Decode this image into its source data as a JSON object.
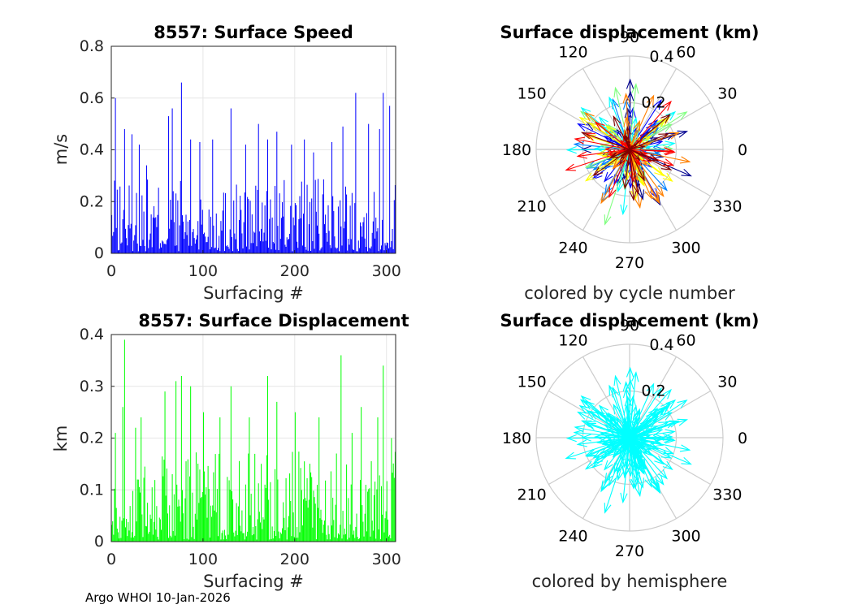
{
  "footer": "Argo WHOI 10-Jan-2026",
  "chart_data": [
    {
      "type": "bar",
      "title": "8557: Surface Speed",
      "xlabel": "Surfacing #",
      "ylabel": "m/s",
      "xlim": [
        0,
        310
      ],
      "ylim": [
        0,
        0.8
      ],
      "xticks": [
        "0",
        "100",
        "200",
        "300"
      ],
      "yticks": [
        "0",
        "0.2",
        "0.4",
        "0.6",
        "0.8"
      ],
      "color": "#0000ff",
      "peaks": [
        [
          4,
          0.6
        ],
        [
          14,
          0.48
        ],
        [
          22,
          0.46
        ],
        [
          30,
          0.42
        ],
        [
          38,
          0.34
        ],
        [
          62,
          0.53
        ],
        [
          66,
          0.56
        ],
        [
          76,
          0.66
        ],
        [
          86,
          0.44
        ],
        [
          96,
          0.43
        ],
        [
          110,
          0.44
        ],
        [
          130,
          0.56
        ],
        [
          146,
          0.42
        ],
        [
          160,
          0.5
        ],
        [
          170,
          0.44
        ],
        [
          180,
          0.47
        ],
        [
          196,
          0.42
        ],
        [
          210,
          0.44
        ],
        [
          220,
          0.39
        ],
        [
          240,
          0.43
        ],
        [
          252,
          0.49
        ],
        [
          266,
          0.62
        ],
        [
          280,
          0.5
        ],
        [
          292,
          0.48
        ],
        [
          296,
          0.62
        ],
        [
          303,
          0.57
        ]
      ],
      "count": 310,
      "baseline_max": 0.28
    },
    {
      "type": "polar",
      "title": "Surface displacement (km)",
      "subtitle": "colored by cycle number",
      "angle_ticks": [
        "0",
        "30",
        "60",
        "90",
        "120",
        "150",
        "180",
        "210",
        "240",
        "270",
        "300",
        "330"
      ],
      "radius_ticks": [
        "0.2",
        "0.4"
      ],
      "rmax": 0.4,
      "color_mode": "cycle",
      "colormap": [
        "#00008f",
        "#0000ff",
        "#0080ff",
        "#00ffff",
        "#80ff80",
        "#ffff00",
        "#ff8000",
        "#ff0000",
        "#800000"
      ]
    },
    {
      "type": "bar",
      "title": "8557: Surface Displacement",
      "xlabel": "Surfacing #",
      "ylabel": "km",
      "xlim": [
        0,
        310
      ],
      "ylim": [
        0,
        0.4
      ],
      "xticks": [
        "0",
        "100",
        "200",
        "300"
      ],
      "yticks": [
        "0",
        "0.1",
        "0.2",
        "0.3",
        "0.4"
      ],
      "color": "#00ff00",
      "peaks": [
        [
          14,
          0.39
        ],
        [
          12,
          0.26
        ],
        [
          4,
          0.21
        ],
        [
          26,
          0.22
        ],
        [
          32,
          0.24
        ],
        [
          58,
          0.29
        ],
        [
          70,
          0.31
        ],
        [
          76,
          0.32
        ],
        [
          86,
          0.3
        ],
        [
          100,
          0.25
        ],
        [
          118,
          0.24
        ],
        [
          130,
          0.3
        ],
        [
          150,
          0.24
        ],
        [
          170,
          0.32
        ],
        [
          180,
          0.27
        ],
        [
          200,
          0.25
        ],
        [
          226,
          0.24
        ],
        [
          250,
          0.36
        ],
        [
          262,
          0.21
        ],
        [
          272,
          0.26
        ],
        [
          290,
          0.24
        ],
        [
          296,
          0.34
        ],
        [
          305,
          0.2
        ]
      ],
      "count": 310,
      "baseline_max": 0.17
    },
    {
      "type": "polar",
      "title": "Surface displacement (km)",
      "subtitle": "colored by hemisphere",
      "angle_ticks": [
        "0",
        "30",
        "60",
        "90",
        "120",
        "150",
        "180",
        "210",
        "240",
        "270",
        "300",
        "330"
      ],
      "radius_ticks": [
        "0.2",
        "0.4"
      ],
      "rmax": 0.4,
      "color_mode": "single",
      "colormap": [
        "#00ffff"
      ]
    }
  ]
}
